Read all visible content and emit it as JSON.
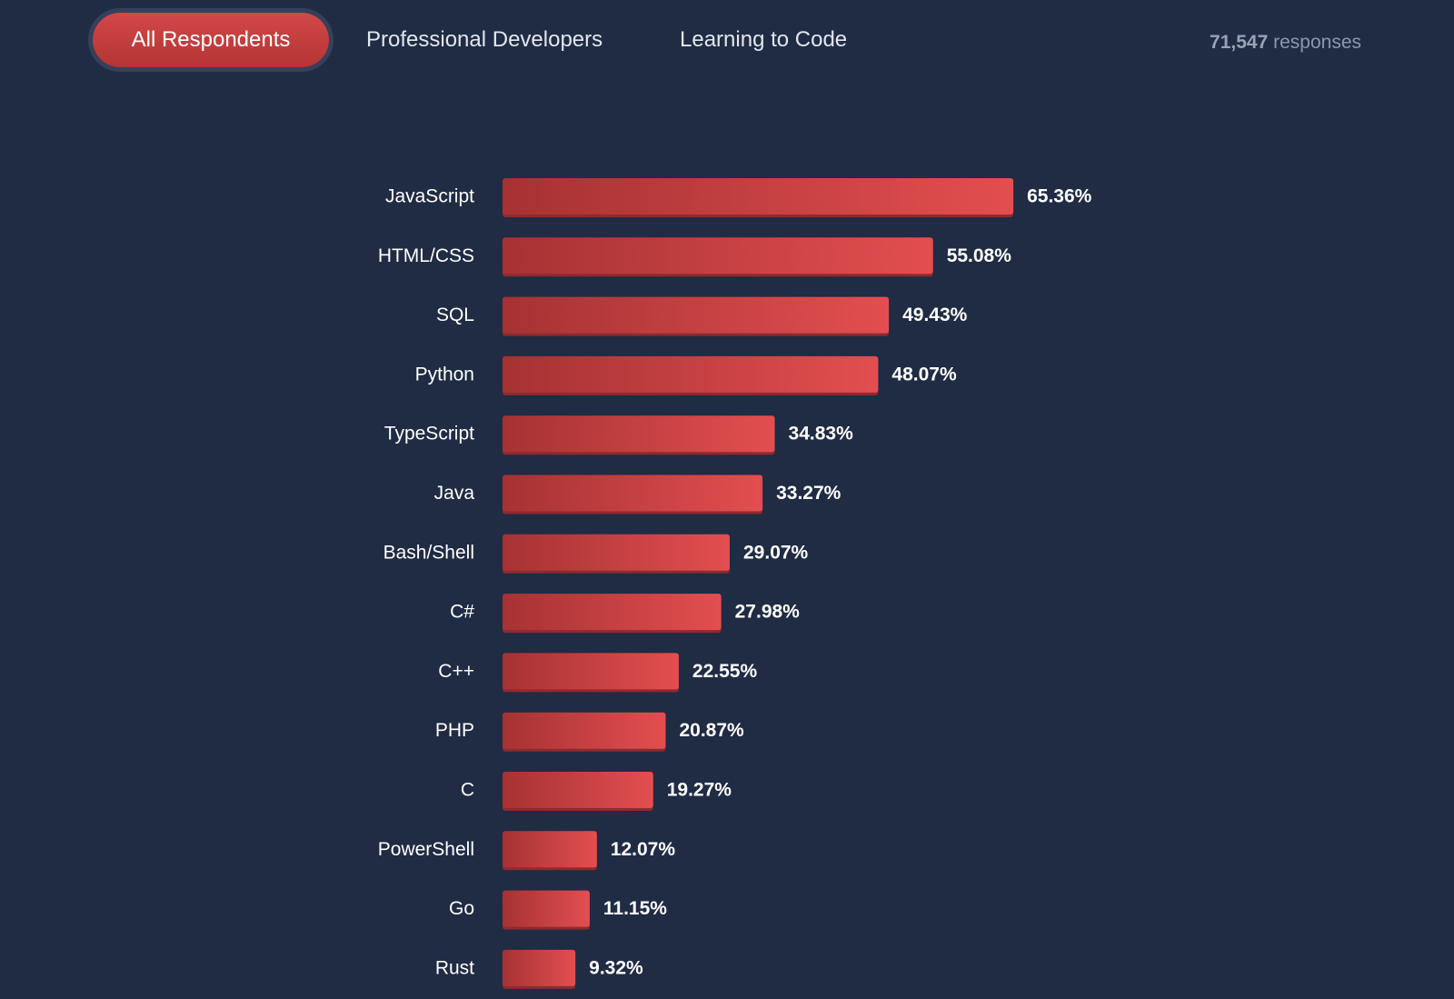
{
  "tabs": [
    {
      "label": "All Respondents",
      "active": true
    },
    {
      "label": "Professional Developers",
      "active": false
    },
    {
      "label": "Learning to Code",
      "active": false
    }
  ],
  "responses": {
    "count": "71,547",
    "label": "responses"
  },
  "colors": {
    "background": "#202b44",
    "bar_start": "#a63233",
    "bar_end": "#e34e50",
    "bar_shadow": "#8f2a2d",
    "text": "#ffffff",
    "muted_text": "#8e97aa"
  },
  "chart_data": {
    "type": "bar",
    "orientation": "horizontal",
    "categories": [
      "JavaScript",
      "HTML/CSS",
      "SQL",
      "Python",
      "TypeScript",
      "Java",
      "Bash/Shell",
      "C#",
      "C++",
      "PHP",
      "C",
      "PowerShell",
      "Go",
      "Rust"
    ],
    "values": [
      65.36,
      55.08,
      49.43,
      48.07,
      34.83,
      33.27,
      29.07,
      27.98,
      22.55,
      20.87,
      19.27,
      12.07,
      11.15,
      9.32
    ],
    "value_labels": [
      "65.36%",
      "55.08%",
      "49.43%",
      "48.07%",
      "34.83%",
      "33.27%",
      "29.07%",
      "27.98%",
      "22.55%",
      "20.87%",
      "19.27%",
      "12.07%",
      "11.15%",
      "9.32%"
    ],
    "xlim": [
      0,
      100
    ],
    "grid": false,
    "legend": "none"
  }
}
